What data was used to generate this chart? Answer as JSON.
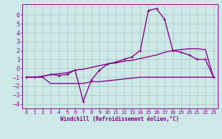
{
  "background_color": "#cde8e8",
  "grid_color": "#aaccbb",
  "line_color": "#880088",
  "xlabel": "Windchill (Refroidissement éolien,°C)",
  "xlim": [
    -0.5,
    23.5
  ],
  "ylim": [
    -4.5,
    7.2
  ],
  "xticks": [
    0,
    1,
    2,
    3,
    4,
    5,
    6,
    7,
    8,
    9,
    10,
    11,
    12,
    13,
    14,
    15,
    16,
    17,
    18,
    19,
    20,
    21,
    22,
    23
  ],
  "yticks": [
    -4,
    -3,
    -2,
    -1,
    0,
    1,
    2,
    3,
    4,
    5,
    6
  ],
  "series": [
    {
      "x": [
        0,
        1,
        2,
        3,
        4,
        5,
        6,
        7,
        8,
        9,
        10,
        11,
        12,
        13,
        14,
        15,
        16,
        17,
        18,
        19,
        20,
        21,
        22,
        23
      ],
      "y": [
        -1.0,
        -1.0,
        -0.9,
        -0.7,
        -0.8,
        -0.7,
        -0.2,
        -3.7,
        -1.3,
        -0.2,
        0.5,
        0.7,
        1.0,
        1.3,
        2.0,
        6.5,
        6.7,
        5.5,
        2.0,
        1.8,
        1.5,
        1.0,
        1.0,
        -1.0
      ],
      "marker": true,
      "lw": 1.0
    },
    {
      "x": [
        0,
        1,
        2,
        3,
        4,
        5,
        6,
        7,
        8,
        9,
        10,
        11,
        12,
        13,
        14,
        15,
        16,
        17,
        18,
        19,
        20,
        21,
        22,
        23
      ],
      "y": [
        -1.0,
        -1.0,
        -1.0,
        -1.7,
        -1.7,
        -1.7,
        -1.7,
        -1.7,
        -1.5,
        -1.5,
        -1.4,
        -1.3,
        -1.2,
        -1.1,
        -1.0,
        -1.0,
        -1.0,
        -1.0,
        -1.0,
        -1.0,
        -1.0,
        -1.0,
        -1.0,
        -1.0
      ],
      "marker": false,
      "lw": 1.0
    },
    {
      "x": [
        0,
        1,
        2,
        3,
        4,
        5,
        6,
        7,
        8,
        9,
        10,
        11,
        12,
        13,
        14,
        15,
        16,
        17,
        18,
        19,
        20,
        21,
        22,
        23
      ],
      "y": [
        -1.0,
        -1.0,
        -0.9,
        -0.7,
        -0.6,
        -0.5,
        -0.2,
        -0.1,
        0.1,
        0.3,
        0.5,
        0.6,
        0.8,
        0.9,
        1.1,
        1.3,
        1.5,
        1.8,
        2.0,
        2.1,
        2.2,
        2.2,
        2.1,
        -1.0
      ],
      "marker": false,
      "lw": 1.0
    }
  ]
}
